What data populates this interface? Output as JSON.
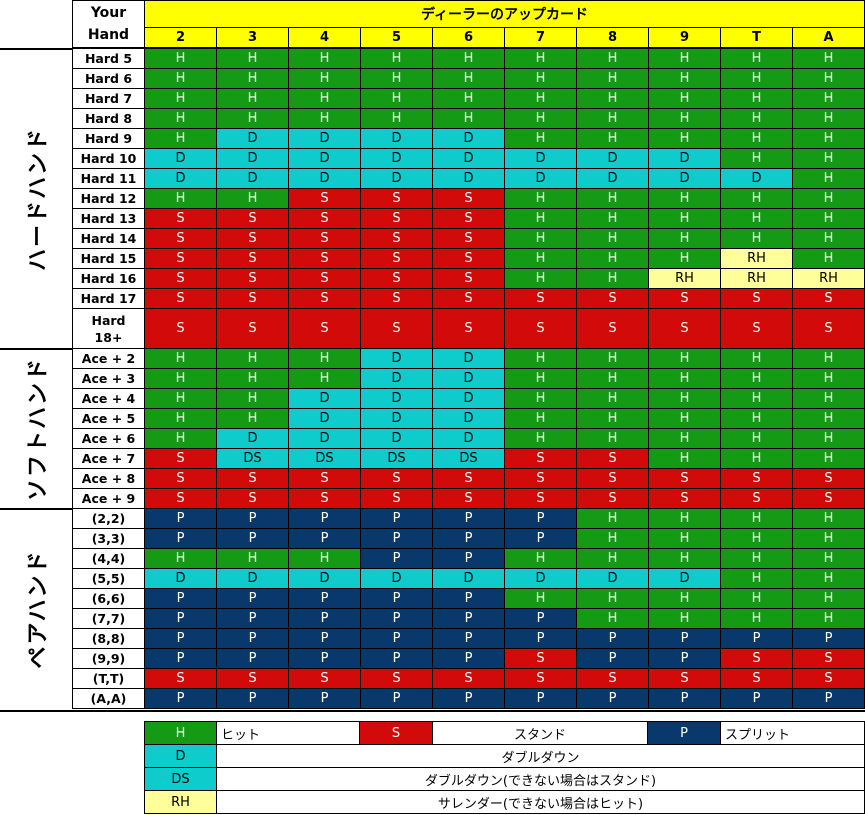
{
  "header": {
    "your_hand_line1": "Your",
    "your_hand_line2": "Hand",
    "title": "ディーラーのアップカード",
    "dealer_cards": [
      "2",
      "3",
      "4",
      "5",
      "6",
      "7",
      "8",
      "9",
      "T",
      "A"
    ]
  },
  "sections": [
    {
      "label": "ハードハンド"
    },
    {
      "label": "ソフトハンド"
    },
    {
      "label": "ペアハンド"
    }
  ],
  "rows": [
    {
      "hand": "Hard 5",
      "actions": [
        "H",
        "H",
        "H",
        "H",
        "H",
        "H",
        "H",
        "H",
        "H",
        "H"
      ]
    },
    {
      "hand": "Hard 6",
      "actions": [
        "H",
        "H",
        "H",
        "H",
        "H",
        "H",
        "H",
        "H",
        "H",
        "H"
      ]
    },
    {
      "hand": "Hard 7",
      "actions": [
        "H",
        "H",
        "H",
        "H",
        "H",
        "H",
        "H",
        "H",
        "H",
        "H"
      ]
    },
    {
      "hand": "Hard 8",
      "actions": [
        "H",
        "H",
        "H",
        "H",
        "H",
        "H",
        "H",
        "H",
        "H",
        "H"
      ]
    },
    {
      "hand": "Hard 9",
      "actions": [
        "H",
        "D",
        "D",
        "D",
        "D",
        "H",
        "H",
        "H",
        "H",
        "H"
      ]
    },
    {
      "hand": "Hard 10",
      "actions": [
        "D",
        "D",
        "D",
        "D",
        "D",
        "D",
        "D",
        "D",
        "H",
        "H"
      ]
    },
    {
      "hand": "Hard 11",
      "actions": [
        "D",
        "D",
        "D",
        "D",
        "D",
        "D",
        "D",
        "D",
        "D",
        "H"
      ]
    },
    {
      "hand": "Hard 12",
      "actions": [
        "H",
        "H",
        "S",
        "S",
        "S",
        "H",
        "H",
        "H",
        "H",
        "H"
      ]
    },
    {
      "hand": "Hard 13",
      "actions": [
        "S",
        "S",
        "S",
        "S",
        "S",
        "H",
        "H",
        "H",
        "H",
        "H"
      ]
    },
    {
      "hand": "Hard 14",
      "actions": [
        "S",
        "S",
        "S",
        "S",
        "S",
        "H",
        "H",
        "H",
        "H",
        "H"
      ]
    },
    {
      "hand": "Hard 15",
      "actions": [
        "S",
        "S",
        "S",
        "S",
        "S",
        "H",
        "H",
        "H",
        "RH",
        "H"
      ]
    },
    {
      "hand": "Hard 16",
      "actions": [
        "S",
        "S",
        "S",
        "S",
        "S",
        "H",
        "H",
        "RH",
        "RH",
        "RH"
      ]
    },
    {
      "hand": "Hard 17",
      "actions": [
        "S",
        "S",
        "S",
        "S",
        "S",
        "S",
        "S",
        "S",
        "S",
        "S"
      ]
    },
    {
      "hand": "Hard\n18+",
      "actions": [
        "S",
        "S",
        "S",
        "S",
        "S",
        "S",
        "S",
        "S",
        "S",
        "S"
      ]
    },
    {
      "hand": "Ace + 2",
      "actions": [
        "H",
        "H",
        "H",
        "D",
        "D",
        "H",
        "H",
        "H",
        "H",
        "H"
      ]
    },
    {
      "hand": "Ace + 3",
      "actions": [
        "H",
        "H",
        "H",
        "D",
        "D",
        "H",
        "H",
        "H",
        "H",
        "H"
      ]
    },
    {
      "hand": "Ace + 4",
      "actions": [
        "H",
        "H",
        "D",
        "D",
        "D",
        "H",
        "H",
        "H",
        "H",
        "H"
      ]
    },
    {
      "hand": "Ace + 5",
      "actions": [
        "H",
        "H",
        "D",
        "D",
        "D",
        "H",
        "H",
        "H",
        "H",
        "H"
      ]
    },
    {
      "hand": "Ace + 6",
      "actions": [
        "H",
        "D",
        "D",
        "D",
        "D",
        "H",
        "H",
        "H",
        "H",
        "H"
      ]
    },
    {
      "hand": "Ace + 7",
      "actions": [
        "S",
        "DS",
        "DS",
        "DS",
        "DS",
        "S",
        "S",
        "H",
        "H",
        "H"
      ]
    },
    {
      "hand": "Ace + 8",
      "actions": [
        "S",
        "S",
        "S",
        "S",
        "S",
        "S",
        "S",
        "S",
        "S",
        "S"
      ]
    },
    {
      "hand": "Ace + 9",
      "actions": [
        "S",
        "S",
        "S",
        "S",
        "S",
        "S",
        "S",
        "S",
        "S",
        "S"
      ]
    },
    {
      "hand": "(2,2)",
      "actions": [
        "P",
        "P",
        "P",
        "P",
        "P",
        "P",
        "H",
        "H",
        "H",
        "H"
      ]
    },
    {
      "hand": "(3,3)",
      "actions": [
        "P",
        "P",
        "P",
        "P",
        "P",
        "P",
        "H",
        "H",
        "H",
        "H"
      ]
    },
    {
      "hand": "(4,4)",
      "actions": [
        "H",
        "H",
        "H",
        "P",
        "P",
        "H",
        "H",
        "H",
        "H",
        "H"
      ]
    },
    {
      "hand": "(5,5)",
      "actions": [
        "D",
        "D",
        "D",
        "D",
        "D",
        "D",
        "D",
        "D",
        "H",
        "H"
      ]
    },
    {
      "hand": "(6,6)",
      "actions": [
        "P",
        "P",
        "P",
        "P",
        "P",
        "H",
        "H",
        "H",
        "H",
        "H"
      ]
    },
    {
      "hand": "(7,7)",
      "actions": [
        "P",
        "P",
        "P",
        "P",
        "P",
        "P",
        "H",
        "H",
        "H",
        "H"
      ]
    },
    {
      "hand": "(8,8)",
      "actions": [
        "P",
        "P",
        "P",
        "P",
        "P",
        "P",
        "P",
        "P",
        "P",
        "P"
      ]
    },
    {
      "hand": "(9,9)",
      "actions": [
        "P",
        "P",
        "P",
        "P",
        "P",
        "S",
        "P",
        "P",
        "S",
        "S"
      ]
    },
    {
      "hand": "(T,T)",
      "actions": [
        "S",
        "S",
        "S",
        "S",
        "S",
        "S",
        "S",
        "S",
        "S",
        "S"
      ]
    },
    {
      "hand": "(A,A)",
      "actions": [
        "P",
        "P",
        "P",
        "P",
        "P",
        "P",
        "P",
        "P",
        "P",
        "P"
      ]
    }
  ],
  "legend": {
    "hit_code": "H",
    "hit_label": "ヒット",
    "stand_code": "S",
    "stand_label": "スタンド",
    "split_code": "P",
    "split_label": "スプリット",
    "double_code": "D",
    "double_label": "ダブルダウン",
    "double_stand_code": "DS",
    "double_stand_label": "ダブルダウン(できない場合はスタンド)",
    "surrender_code": "RH",
    "surrender_label": "サレンダー(できない場合はヒット)"
  },
  "colors": {
    "H": "#149a14",
    "D": "#0ecccc",
    "DS": "#0ecccc",
    "S": "#d20a0a",
    "P": "#08386c",
    "RH": "#ffff9a",
    "header_yellow": "#ffff00"
  }
}
